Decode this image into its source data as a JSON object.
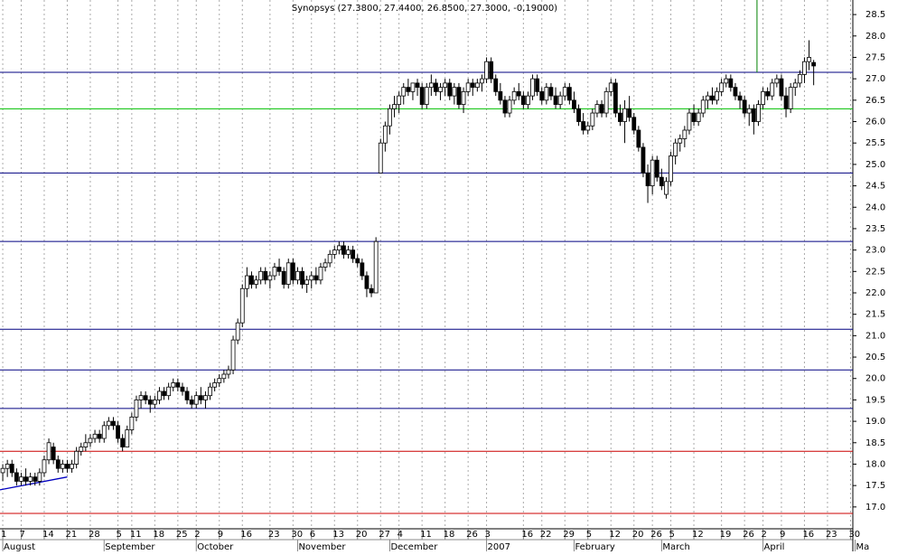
{
  "chart_data": {
    "type": "candlestick",
    "title": "Synopsys (27.3800, 27.4400, 26.8500, 27.3000, -0,19000)",
    "ylim": [
      16.49,
      28.84
    ],
    "yticks": [
      {
        "value": 17,
        "label": "17.0"
      },
      {
        "value": 17.5,
        "label": "17.5"
      },
      {
        "value": 18,
        "label": "18.0"
      },
      {
        "value": 18.5,
        "label": "18.5"
      },
      {
        "value": 19,
        "label": "19.0"
      },
      {
        "value": 19.5,
        "label": "19.5"
      },
      {
        "value": 20,
        "label": "20.0"
      },
      {
        "value": 20.5,
        "label": "20.5"
      },
      {
        "value": 21,
        "label": "21.0"
      },
      {
        "value": 21.5,
        "label": "21.5"
      },
      {
        "value": 22,
        "label": "22.0"
      },
      {
        "value": 22.5,
        "label": "22.5"
      },
      {
        "value": 23,
        "label": "23.0"
      },
      {
        "value": 23.5,
        "label": "23.5"
      },
      {
        "value": 24,
        "label": "24.0"
      },
      {
        "value": 24.5,
        "label": "24.5"
      },
      {
        "value": 25,
        "label": "25.0"
      },
      {
        "value": 25.5,
        "label": "25.5"
      },
      {
        "value": 26,
        "label": "26.0"
      },
      {
        "value": 26.5,
        "label": "26.5"
      },
      {
        "value": 27,
        "label": "27.0"
      },
      {
        "value": 27.5,
        "label": "27.5"
      },
      {
        "value": 28,
        "label": "28.0"
      },
      {
        "value": 28.5,
        "label": "28.5"
      }
    ],
    "xlim": [
      -0.6,
      184.5
    ],
    "xticks": [
      {
        "value": 0,
        "label": "1"
      },
      {
        "value": 4,
        "label": "7"
      },
      {
        "value": 9,
        "label": "14"
      },
      {
        "value": 14,
        "label": "21"
      },
      {
        "value": 19,
        "label": "28"
      },
      {
        "value": 25,
        "label": "5"
      },
      {
        "value": 28,
        "label": "11"
      },
      {
        "value": 33,
        "label": "18"
      },
      {
        "value": 38,
        "label": "25"
      },
      {
        "value": 42,
        "label": "2"
      },
      {
        "value": 47,
        "label": "9"
      },
      {
        "value": 52,
        "label": "16"
      },
      {
        "value": 58,
        "label": "23"
      },
      {
        "value": 63,
        "label": "30"
      },
      {
        "value": 67,
        "label": "6"
      },
      {
        "value": 72,
        "label": "13"
      },
      {
        "value": 77,
        "label": "20"
      },
      {
        "value": 82,
        "label": "27"
      },
      {
        "value": 86,
        "label": "4"
      },
      {
        "value": 91,
        "label": "11"
      },
      {
        "value": 96,
        "label": "18"
      },
      {
        "value": 101,
        "label": "26"
      },
      {
        "value": 105,
        "label": "3"
      },
      {
        "value": 113,
        "label": "16"
      },
      {
        "value": 117,
        "label": "22"
      },
      {
        "value": 122,
        "label": "29"
      },
      {
        "value": 127,
        "label": "5"
      },
      {
        "value": 132,
        "label": "12"
      },
      {
        "value": 137,
        "label": "20"
      },
      {
        "value": 141,
        "label": "26"
      },
      {
        "value": 145,
        "label": "5"
      },
      {
        "value": 150,
        "label": "12"
      },
      {
        "value": 156,
        "label": "19"
      },
      {
        "value": 161,
        "label": "26"
      },
      {
        "value": 165,
        "label": "2"
      },
      {
        "value": 169,
        "label": "9"
      },
      {
        "value": 174,
        "label": "16"
      },
      {
        "value": 179,
        "label": "23"
      },
      {
        "value": 184,
        "label": "30"
      }
    ],
    "months": [
      {
        "value": 0,
        "label": "August"
      },
      {
        "value": 22,
        "label": "September"
      },
      {
        "value": 42,
        "label": "October"
      },
      {
        "value": 64,
        "label": "November"
      },
      {
        "value": 84,
        "label": "December"
      },
      {
        "value": 105,
        "label": "2007"
      },
      {
        "value": 124,
        "label": "February"
      },
      {
        "value": 143,
        "label": "March"
      },
      {
        "value": 165,
        "label": "April"
      },
      {
        "value": 185,
        "label": "Ma"
      }
    ],
    "grid": true,
    "hlines": [
      {
        "value": 27.15,
        "color": "#000080"
      },
      {
        "value": 26.3,
        "color": "#00c000"
      },
      {
        "value": 24.8,
        "color": "#000080"
      },
      {
        "value": 23.2,
        "color": "#000080"
      },
      {
        "value": 21.15,
        "color": "#000080"
      },
      {
        "value": 20.2,
        "color": "#000080"
      },
      {
        "value": 19.3,
        "color": "#000080"
      },
      {
        "value": 18.3,
        "color": "#cc0000"
      },
      {
        "value": 16.85,
        "color": "#cc0000"
      }
    ],
    "vline": {
      "x": 163.7,
      "y_from": 27.15,
      "color": "#008000"
    },
    "trendline": {
      "x": [
        -0.6,
        14
      ],
      "y": [
        17.4,
        17.7
      ],
      "color": "#0000c0"
    },
    "ohlc": [
      [
        17.8,
        18.0,
        17.6,
        17.9
      ],
      [
        17.9,
        18.1,
        17.7,
        18.0
      ],
      [
        18.0,
        18.1,
        17.7,
        17.8
      ],
      [
        17.8,
        17.9,
        17.5,
        17.6
      ],
      [
        17.6,
        17.8,
        17.5,
        17.7
      ],
      [
        17.7,
        17.9,
        17.5,
        17.6
      ],
      [
        17.6,
        17.8,
        17.5,
        17.7
      ],
      [
        17.7,
        17.8,
        17.5,
        17.6
      ],
      [
        17.6,
        17.9,
        17.5,
        17.8
      ],
      [
        17.8,
        18.2,
        17.7,
        18.1
      ],
      [
        18.1,
        18.6,
        18.0,
        18.5
      ],
      [
        18.4,
        18.5,
        18.0,
        18.1
      ],
      [
        18.1,
        18.2,
        17.8,
        17.9
      ],
      [
        17.9,
        18.1,
        17.8,
        18.0
      ],
      [
        18.0,
        18.1,
        17.8,
        17.9
      ],
      [
        17.9,
        18.1,
        17.8,
        18.0
      ],
      [
        18.0,
        18.4,
        17.9,
        18.3
      ],
      [
        18.3,
        18.5,
        18.2,
        18.4
      ],
      [
        18.4,
        18.7,
        18.3,
        18.5
      ],
      [
        18.5,
        18.7,
        18.4,
        18.6
      ],
      [
        18.6,
        18.8,
        18.5,
        18.7
      ],
      [
        18.7,
        18.8,
        18.5,
        18.6
      ],
      [
        18.6,
        19.0,
        18.5,
        18.9
      ],
      [
        18.9,
        19.1,
        18.8,
        19.0
      ],
      [
        19.0,
        19.1,
        18.8,
        18.9
      ],
      [
        18.9,
        19.0,
        18.5,
        18.6
      ],
      [
        18.6,
        18.7,
        18.3,
        18.4
      ],
      [
        18.4,
        18.9,
        18.4,
        18.8
      ],
      [
        18.8,
        19.2,
        18.7,
        19.1
      ],
      [
        19.1,
        19.6,
        19.0,
        19.5
      ],
      [
        19.5,
        19.7,
        19.3,
        19.6
      ],
      [
        19.6,
        19.7,
        19.4,
        19.5
      ],
      [
        19.5,
        19.6,
        19.2,
        19.4
      ],
      [
        19.4,
        19.6,
        19.3,
        19.5
      ],
      [
        19.5,
        19.8,
        19.4,
        19.7
      ],
      [
        19.7,
        19.8,
        19.5,
        19.6
      ],
      [
        19.6,
        19.9,
        19.5,
        19.8
      ],
      [
        19.8,
        20.0,
        19.7,
        19.9
      ],
      [
        19.9,
        20.0,
        19.7,
        19.8
      ],
      [
        19.8,
        19.9,
        19.6,
        19.7
      ],
      [
        19.7,
        19.8,
        19.4,
        19.5
      ],
      [
        19.5,
        19.6,
        19.3,
        19.4
      ],
      [
        19.4,
        19.7,
        19.3,
        19.6
      ],
      [
        19.6,
        19.8,
        19.4,
        19.5
      ],
      [
        19.5,
        19.7,
        19.3,
        19.6
      ],
      [
        19.6,
        19.9,
        19.5,
        19.8
      ],
      [
        19.8,
        20.0,
        19.7,
        19.9
      ],
      [
        19.9,
        20.1,
        19.8,
        20.0
      ],
      [
        20.0,
        20.2,
        19.9,
        20.1
      ],
      [
        20.1,
        20.3,
        20.0,
        20.2
      ],
      [
        20.2,
        21.0,
        20.1,
        20.9
      ],
      [
        20.9,
        21.4,
        20.8,
        21.3
      ],
      [
        21.3,
        22.2,
        21.2,
        22.1
      ],
      [
        22.1,
        22.6,
        21.9,
        22.4
      ],
      [
        22.4,
        22.5,
        22.1,
        22.2
      ],
      [
        22.2,
        22.4,
        22.1,
        22.3
      ],
      [
        22.3,
        22.6,
        22.2,
        22.5
      ],
      [
        22.5,
        22.6,
        22.2,
        22.3
      ],
      [
        22.3,
        22.5,
        22.1,
        22.4
      ],
      [
        22.4,
        22.7,
        22.3,
        22.6
      ],
      [
        22.6,
        22.8,
        22.4,
        22.5
      ],
      [
        22.5,
        22.6,
        22.1,
        22.2
      ],
      [
        22.2,
        22.8,
        22.1,
        22.7
      ],
      [
        22.7,
        22.8,
        22.2,
        22.3
      ],
      [
        22.3,
        22.6,
        22.2,
        22.5
      ],
      [
        22.5,
        22.6,
        22.1,
        22.2
      ],
      [
        22.2,
        22.4,
        22.0,
        22.3
      ],
      [
        22.3,
        22.5,
        22.1,
        22.4
      ],
      [
        22.4,
        22.6,
        22.2,
        22.3
      ],
      [
        22.3,
        22.7,
        22.2,
        22.6
      ],
      [
        22.6,
        22.8,
        22.5,
        22.7
      ],
      [
        22.7,
        23.0,
        22.6,
        22.9
      ],
      [
        22.9,
        23.1,
        22.8,
        23.0
      ],
      [
        23.0,
        23.2,
        22.9,
        23.1
      ],
      [
        23.1,
        23.2,
        22.8,
        22.9
      ],
      [
        22.9,
        23.1,
        22.8,
        23.0
      ],
      [
        23.0,
        23.1,
        22.7,
        22.8
      ],
      [
        22.8,
        22.9,
        22.6,
        22.7
      ],
      [
        22.7,
        22.8,
        22.3,
        22.4
      ],
      [
        22.4,
        22.5,
        21.9,
        22.1
      ],
      [
        22.1,
        22.2,
        21.9,
        22.0
      ],
      [
        22.0,
        23.3,
        22.0,
        23.2
      ],
      [
        24.8,
        25.6,
        24.8,
        25.5
      ],
      [
        25.5,
        26.0,
        25.3,
        25.9
      ],
      [
        25.9,
        26.4,
        25.7,
        26.3
      ],
      [
        26.3,
        26.6,
        26.1,
        26.4
      ],
      [
        26.4,
        26.7,
        26.2,
        26.6
      ],
      [
        26.6,
        26.9,
        26.4,
        26.8
      ],
      [
        26.8,
        27.0,
        26.6,
        26.7
      ],
      [
        26.7,
        26.9,
        26.5,
        26.9
      ],
      [
        26.9,
        27.0,
        26.6,
        26.8
      ],
      [
        26.8,
        26.9,
        26.3,
        26.4
      ],
      [
        26.4,
        26.9,
        26.3,
        26.8
      ],
      [
        26.8,
        27.1,
        26.6,
        26.9
      ],
      [
        26.9,
        27.0,
        26.6,
        26.7
      ],
      [
        26.7,
        26.9,
        26.5,
        26.8
      ],
      [
        26.8,
        27.0,
        26.6,
        26.9
      ],
      [
        26.9,
        27.0,
        26.5,
        26.6
      ],
      [
        26.6,
        26.9,
        26.4,
        26.8
      ],
      [
        26.8,
        26.9,
        26.3,
        26.4
      ],
      [
        26.4,
        26.8,
        26.2,
        26.7
      ],
      [
        26.7,
        27.0,
        26.6,
        26.9
      ],
      [
        26.9,
        27.0,
        26.6,
        26.8
      ],
      [
        26.8,
        27.0,
        26.7,
        26.9
      ],
      [
        26.9,
        27.1,
        26.7,
        27.0
      ],
      [
        27.0,
        27.5,
        26.9,
        27.4
      ],
      [
        27.4,
        27.5,
        26.9,
        27.0
      ],
      [
        27.0,
        27.1,
        26.6,
        26.7
      ],
      [
        26.7,
        26.9,
        26.4,
        26.5
      ],
      [
        26.5,
        26.6,
        26.1,
        26.2
      ],
      [
        26.2,
        26.6,
        26.1,
        26.5
      ],
      [
        26.5,
        26.8,
        26.4,
        26.7
      ],
      [
        26.7,
        26.9,
        26.5,
        26.6
      ],
      [
        26.6,
        26.7,
        26.3,
        26.4
      ],
      [
        26.4,
        26.7,
        26.3,
        26.6
      ],
      [
        26.6,
        27.1,
        26.5,
        27.0
      ],
      [
        27.0,
        27.1,
        26.6,
        26.7
      ],
      [
        26.7,
        26.8,
        26.4,
        26.5
      ],
      [
        26.5,
        26.9,
        26.4,
        26.8
      ],
      [
        26.8,
        26.9,
        26.5,
        26.6
      ],
      [
        26.6,
        26.8,
        26.3,
        26.4
      ],
      [
        26.4,
        26.7,
        26.3,
        26.6
      ],
      [
        26.6,
        26.9,
        26.5,
        26.8
      ],
      [
        26.8,
        26.9,
        26.4,
        26.5
      ],
      [
        26.5,
        26.7,
        26.2,
        26.3
      ],
      [
        26.3,
        26.4,
        25.9,
        26.0
      ],
      [
        26.0,
        26.2,
        25.7,
        25.8
      ],
      [
        25.8,
        26.0,
        25.7,
        25.9
      ],
      [
        25.9,
        26.3,
        25.8,
        26.2
      ],
      [
        26.2,
        26.5,
        26.1,
        26.4
      ],
      [
        26.4,
        26.5,
        26.1,
        26.2
      ],
      [
        26.2,
        26.8,
        26.1,
        26.7
      ],
      [
        26.7,
        27.0,
        26.6,
        26.9
      ],
      [
        26.9,
        27.0,
        26.1,
        26.2
      ],
      [
        26.2,
        26.4,
        25.9,
        26.0
      ],
      [
        26.0,
        26.5,
        25.5,
        26.3
      ],
      [
        26.3,
        26.6,
        26.0,
        26.1
      ],
      [
        26.1,
        26.2,
        25.7,
        25.8
      ],
      [
        25.8,
        25.9,
        25.3,
        25.4
      ],
      [
        25.4,
        25.5,
        24.7,
        24.8
      ],
      [
        24.8,
        25.0,
        24.1,
        24.5
      ],
      [
        24.5,
        25.2,
        24.3,
        25.1
      ],
      [
        25.1,
        25.2,
        24.6,
        24.7
      ],
      [
        24.7,
        24.9,
        24.4,
        24.5
      ],
      [
        24.3,
        24.7,
        24.2,
        24.6
      ],
      [
        24.6,
        25.3,
        24.5,
        25.2
      ],
      [
        25.2,
        25.6,
        25.0,
        25.5
      ],
      [
        25.5,
        25.7,
        25.3,
        25.6
      ],
      [
        25.6,
        25.9,
        25.4,
        25.8
      ],
      [
        25.8,
        26.3,
        25.7,
        26.2
      ],
      [
        26.2,
        26.4,
        25.9,
        26.0
      ],
      [
        26.0,
        26.3,
        25.9,
        26.2
      ],
      [
        26.2,
        26.6,
        26.1,
        26.5
      ],
      [
        26.5,
        26.7,
        26.3,
        26.6
      ],
      [
        26.6,
        26.8,
        26.4,
        26.5
      ],
      [
        26.5,
        26.8,
        26.4,
        26.7
      ],
      [
        26.7,
        27.0,
        26.6,
        26.9
      ],
      [
        26.9,
        27.1,
        26.8,
        27.0
      ],
      [
        27.0,
        27.1,
        26.7,
        26.8
      ],
      [
        26.8,
        26.9,
        26.5,
        26.6
      ],
      [
        26.6,
        26.7,
        26.3,
        26.5
      ],
      [
        26.5,
        26.6,
        26.1,
        26.2
      ],
      [
        26.2,
        26.4,
        25.9,
        26.3
      ],
      [
        26.3,
        26.4,
        25.7,
        26.0
      ],
      [
        26.0,
        26.5,
        25.9,
        26.4
      ],
      [
        26.4,
        26.8,
        26.3,
        26.7
      ],
      [
        26.7,
        26.8,
        26.5,
        26.6
      ],
      [
        26.6,
        27.0,
        26.5,
        26.9
      ],
      [
        26.9,
        27.1,
        26.8,
        27.0
      ],
      [
        27.0,
        27.1,
        26.5,
        26.6
      ],
      [
        26.6,
        26.8,
        26.1,
        26.3
      ],
      [
        26.3,
        26.9,
        26.2,
        26.8
      ],
      [
        26.8,
        27.0,
        26.6,
        26.9
      ],
      [
        26.9,
        27.2,
        26.8,
        27.1
      ],
      [
        27.1,
        27.5,
        26.9,
        27.4
      ],
      [
        27.4,
        27.9,
        27.2,
        27.5
      ],
      [
        27.38,
        27.44,
        26.85,
        27.3
      ]
    ]
  }
}
